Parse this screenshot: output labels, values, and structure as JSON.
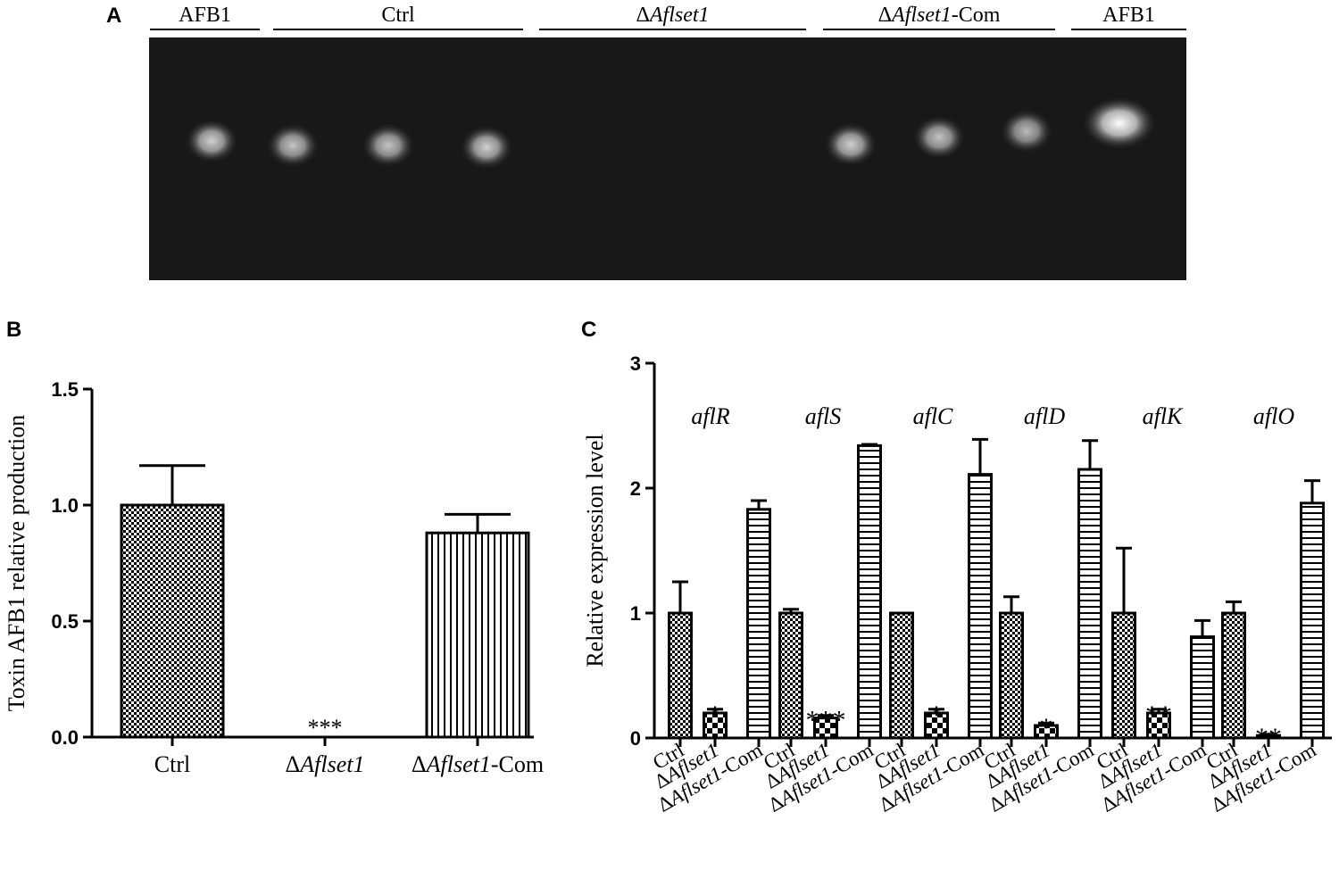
{
  "panels": {
    "a": {
      "letter": "A",
      "groups": [
        {
          "label": "AFB1",
          "italic": "",
          "suffix": ""
        },
        {
          "label": "Ctrl",
          "italic": "",
          "suffix": ""
        },
        {
          "label": "Δ",
          "italic": "Aflset1",
          "suffix": ""
        },
        {
          "label": "Δ",
          "italic": "Aflset1",
          "suffix": "-Com"
        },
        {
          "label": "AFB1",
          "italic": "",
          "suffix": ""
        }
      ],
      "spot_intensities": [
        0.8,
        0.75,
        0.75,
        0.8,
        0,
        0,
        0,
        0,
        0.8,
        0.75,
        0.7,
        1.0
      ]
    },
    "b": {
      "letter": "B"
    },
    "c": {
      "letter": "C"
    }
  },
  "chart_data": [
    {
      "type": "bar",
      "panel": "B",
      "ylabel": "Toxin AFB1 relative production",
      "ylim": [
        0,
        1.5
      ],
      "yticks": [
        "0.0",
        "0.5",
        "1.0",
        "1.5"
      ],
      "categories": [
        {
          "prefix": "",
          "italic": "",
          "suffix": "Ctrl"
        },
        {
          "prefix": "Δ",
          "italic": "Aflset1",
          "suffix": ""
        },
        {
          "prefix": "Δ",
          "italic": "Aflset1",
          "suffix": "-Com"
        }
      ],
      "values": [
        1.0,
        0.0,
        0.88
      ],
      "errors": [
        0.17,
        0.0,
        0.08
      ],
      "patterns": [
        "checker",
        "checker",
        "vertical"
      ],
      "significance": [
        "",
        "***",
        ""
      ]
    },
    {
      "type": "bar",
      "panel": "C",
      "ylabel": "Relative expression level",
      "ylim": [
        0,
        3
      ],
      "yticks": [
        "0",
        "1",
        "2",
        "3"
      ],
      "genes": [
        "aflR",
        "aflS",
        "aflC",
        "aflD",
        "aflK",
        "aflO"
      ],
      "series_labels": [
        {
          "prefix": "",
          "italic": "",
          "suffix": "Ctrl"
        },
        {
          "prefix": "Δ",
          "italic": "Aflset1",
          "suffix": ""
        },
        {
          "prefix": "Δ",
          "italic": "Aflset1",
          "suffix": "-Com"
        }
      ],
      "patterns": [
        "checker",
        "bigchecker",
        "horizontal"
      ],
      "series": [
        {
          "values": [
            1.0,
            1.0,
            1.0,
            1.0,
            1.0,
            1.0
          ],
          "errors": [
            0.25,
            0.03,
            0.0,
            0.13,
            0.52,
            0.09
          ]
        },
        {
          "values": [
            0.2,
            0.16,
            0.2,
            0.1,
            0.2,
            0.02
          ],
          "errors": [
            0.03,
            0.02,
            0.03,
            0.02,
            0.03,
            0.01
          ]
        },
        {
          "values": [
            1.83,
            2.34,
            2.11,
            2.15,
            0.81,
            1.88
          ],
          "errors": [
            0.07,
            0.01,
            0.28,
            0.23,
            0.13,
            0.18
          ]
        }
      ],
      "significance": [
        "*",
        "***",
        "*",
        "*",
        "**",
        "**"
      ]
    }
  ]
}
